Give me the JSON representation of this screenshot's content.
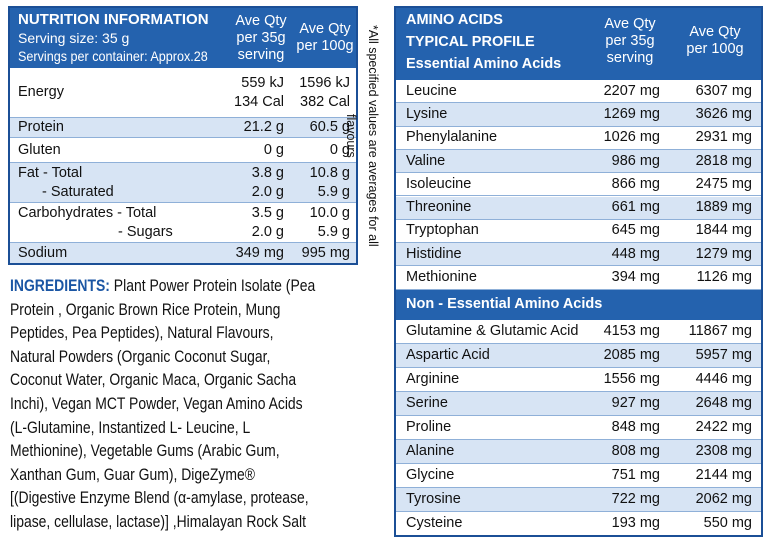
{
  "nutrition": {
    "header": {
      "title": "NUTRITION INFORMATION",
      "serving_size": "Serving size:  35 g",
      "servings": "Servings per container: Approx.28",
      "col1": [
        "Ave Qty",
        "per 35g",
        "serving"
      ],
      "col2": [
        "Ave Qty",
        "per 100g"
      ]
    },
    "rows": [
      {
        "label": [
          "Energy"
        ],
        "col1": [
          "559 kJ",
          "134 Cal"
        ],
        "col2": [
          "1596 kJ",
          "382 Cal"
        ]
      },
      {
        "label": [
          "Protein"
        ],
        "col1": [
          "21.2 g"
        ],
        "col2": [
          "60.5 g"
        ]
      },
      {
        "label": [
          "Gluten"
        ],
        "col1": [
          "0 g"
        ],
        "col2": [
          "0 g"
        ]
      },
      {
        "label": [
          "Fat -  Total",
          "-  Saturated"
        ],
        "col1": [
          "3.8 g",
          "2.0 g"
        ],
        "col2": [
          "10.8 g",
          "5.9 g"
        ]
      },
      {
        "label": [
          "Carbohydrates   - Total",
          "- Sugars"
        ],
        "col1": [
          "3.5 g",
          "2.0 g"
        ],
        "col2": [
          "10.0 g",
          "5.9 g"
        ]
      },
      {
        "label": [
          "Sodium"
        ],
        "col1": [
          "349 mg"
        ],
        "col2": [
          "995 mg"
        ]
      }
    ]
  },
  "note": "*All specified values are averages for all flavours",
  "ingredients": {
    "label": "INGREDIENTS:",
    "lines": [
      "Plant Power Protein Isolate (Pea",
      "Protein , Organic Brown Rice Protein, Mung",
      "Peptides, Pea Peptides), Natural Flavours,",
      "Natural Powders (Organic Coconut Sugar,",
      "Coconut Water, Organic Maca, Organic Sacha",
      "Inchi), Vegan MCT Powder, Vegan Amino Acids",
      "(L-Glutamine, Instantized L- Leucine, L",
      "Methionine), Vegetable Gums (Arabic Gum,",
      "Xanthan Gum, Guar Gum), DigeZyme®",
      "[(Digestive Enzyme Blend (α-amylase, protease,",
      "lipase, cellulase, lactase)] ,Himalayan Rock Salt"
    ]
  },
  "amino": {
    "header": {
      "title": "AMINO ACIDS",
      "subtitle": "TYPICAL PROFILE",
      "col1": [
        "Ave Qty",
        "per 35g",
        "serving"
      ],
      "col2": [
        "Ave Qty",
        "per 100g"
      ]
    },
    "essential": {
      "title": "Essential Amino Acids",
      "rows": [
        [
          "Leucine",
          "2207 mg",
          "6307 mg"
        ],
        [
          "Lysine",
          "1269 mg",
          "3626 mg"
        ],
        [
          "Phenylalanine",
          "1026 mg",
          "2931 mg"
        ],
        [
          "Valine",
          "986 mg",
          "2818 mg"
        ],
        [
          "Isoleucine",
          "866 mg",
          "2475 mg"
        ],
        [
          "Threonine",
          "661 mg",
          "1889 mg"
        ],
        [
          "Tryptophan",
          "645 mg",
          "1844 mg"
        ],
        [
          "Histidine",
          "448 mg",
          "1279 mg"
        ],
        [
          "Methionine",
          "394 mg",
          "1126 mg"
        ]
      ]
    },
    "non_essential": {
      "title": "Non - Essential Amino Acids",
      "rows": [
        [
          "Glutamine & Glutamic Acid",
          "4153 mg",
          "11867 mg"
        ],
        [
          "Aspartic Acid",
          "2085 mg",
          "5957 mg"
        ],
        [
          "Arginine",
          "1556 mg",
          "4446 mg"
        ],
        [
          "Serine",
          "927 mg",
          "2648 mg"
        ],
        [
          "Proline",
          "848 mg",
          "2422 mg"
        ],
        [
          "Alanine",
          "808 mg",
          "2308 mg"
        ],
        [
          "Glycine",
          "751 mg",
          "2144 mg"
        ],
        [
          "Tyrosine",
          "722 mg",
          "2062 mg"
        ],
        [
          "Cysteine",
          "193 mg",
          "550 mg"
        ]
      ]
    }
  }
}
